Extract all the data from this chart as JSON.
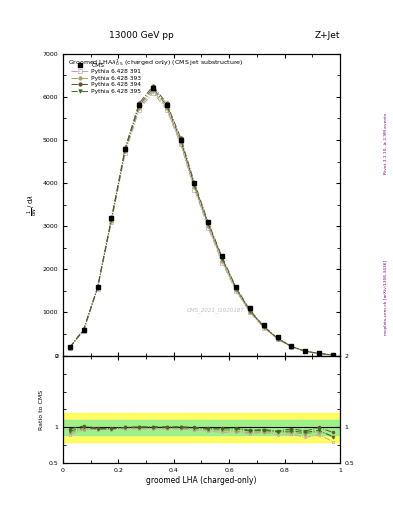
{
  "title_top": "13000 GeV pp",
  "title_right": "Z+Jet",
  "plot_title": "Groomed LHA$\\lambda^{1}_{0.5}$ (charged only) (CMS jet substructure)",
  "xlabel": "groomed LHA (charged-only)",
  "ylabel_main": "$\\frac{1}{\\mathrm{d}N}\\,/\\,\\mathrm{d}\\lambda$",
  "ylabel_ratio": "Ratio to CMS",
  "right_label1": "Rivet 3.1.10, ≥ 2.9M events",
  "right_label2": "mcplots.cern.ch [arXiv:1306.3436]",
  "watermark": "CMS_2021_I1920187",
  "x_bins": [
    0.025,
    0.075,
    0.125,
    0.175,
    0.225,
    0.275,
    0.325,
    0.375,
    0.425,
    0.475,
    0.525,
    0.575,
    0.625,
    0.675,
    0.725,
    0.775,
    0.825,
    0.875,
    0.925,
    0.975
  ],
  "cms_y": [
    200,
    600,
    1600,
    3200,
    4800,
    5800,
    6200,
    5800,
    5000,
    4000,
    3100,
    2300,
    1600,
    1100,
    700,
    420,
    220,
    110,
    50,
    15
  ],
  "py391_y": [
    180,
    580,
    1550,
    3100,
    4700,
    5700,
    6100,
    5700,
    4900,
    3850,
    2950,
    2150,
    1500,
    1000,
    650,
    380,
    200,
    95,
    45,
    12
  ],
  "py393_y": [
    185,
    590,
    1560,
    3120,
    4750,
    5750,
    6150,
    5750,
    4950,
    3900,
    3000,
    2200,
    1520,
    1020,
    660,
    390,
    205,
    100,
    47,
    13
  ],
  "py394_y": [
    195,
    610,
    1580,
    3180,
    4820,
    5850,
    6250,
    5850,
    5050,
    4000,
    3080,
    2280,
    1580,
    1060,
    680,
    400,
    215,
    105,
    50,
    14
  ],
  "py395_y": [
    190,
    600,
    1570,
    3150,
    4780,
    5800,
    6200,
    5800,
    5000,
    3950,
    3050,
    2250,
    1560,
    1040,
    670,
    395,
    210,
    102,
    48,
    13
  ],
  "ratio_py391_y": [
    0.9,
    0.97,
    0.97,
    0.97,
    0.98,
    0.98,
    0.98,
    0.98,
    0.98,
    0.96,
    0.95,
    0.93,
    0.94,
    0.91,
    0.93,
    0.9,
    0.91,
    0.86,
    0.9,
    0.8
  ],
  "ratio_py393_y": [
    0.93,
    0.98,
    0.98,
    0.98,
    0.99,
    0.99,
    0.99,
    0.99,
    0.99,
    0.98,
    0.97,
    0.96,
    0.95,
    0.93,
    0.94,
    0.93,
    0.93,
    0.91,
    0.94,
    0.87
  ],
  "ratio_py394_y": [
    0.98,
    1.02,
    0.99,
    0.99,
    1.0,
    1.01,
    1.01,
    1.01,
    1.01,
    1.0,
    0.99,
    0.99,
    0.99,
    0.96,
    0.97,
    0.95,
    0.98,
    0.95,
    1.0,
    0.93
  ],
  "ratio_py395_y": [
    0.95,
    1.0,
    0.98,
    0.98,
    1.0,
    1.0,
    1.0,
    1.0,
    1.0,
    0.99,
    0.98,
    0.98,
    0.98,
    0.95,
    0.96,
    0.94,
    0.95,
    0.93,
    0.96,
    0.87
  ],
  "ylim_main": [
    0,
    7000
  ],
  "ylim_ratio": [
    0.5,
    2.0
  ],
  "color_py391": "#c8a0b0",
  "color_py393": "#a8a060",
  "color_py394": "#6b4c2c",
  "color_py395": "#3a6a2c",
  "yellow_band_lo": 0.8,
  "yellow_band_hi": 1.2,
  "green_band_lo": 0.9,
  "green_band_hi": 1.1
}
